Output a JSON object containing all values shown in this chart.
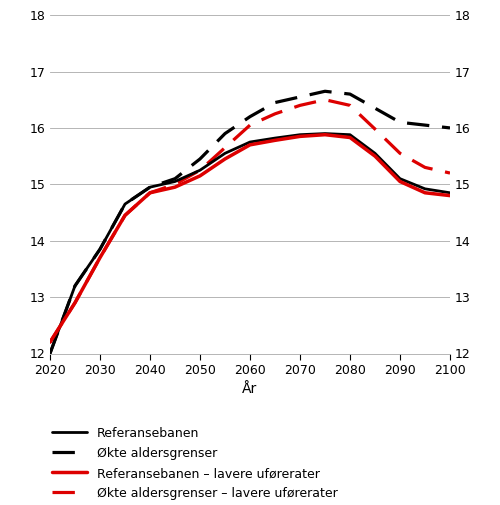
{
  "years": [
    2020,
    2025,
    2030,
    2035,
    2040,
    2045,
    2050,
    2055,
    2060,
    2065,
    2070,
    2075,
    2080,
    2085,
    2090,
    2095,
    2100
  ],
  "referansebanen": [
    12.0,
    13.2,
    13.85,
    14.65,
    14.95,
    15.05,
    15.25,
    15.55,
    15.75,
    15.82,
    15.88,
    15.9,
    15.88,
    15.55,
    15.1,
    14.92,
    14.85
  ],
  "okte_aldersgrenser": [
    12.0,
    13.2,
    13.85,
    14.65,
    14.95,
    15.1,
    15.45,
    15.9,
    16.2,
    16.45,
    16.55,
    16.65,
    16.6,
    16.35,
    16.1,
    16.05,
    16.0
  ],
  "referansebanen_lavere": [
    12.2,
    12.9,
    13.7,
    14.45,
    14.85,
    14.95,
    15.15,
    15.45,
    15.7,
    15.78,
    15.85,
    15.88,
    15.83,
    15.5,
    15.05,
    14.85,
    14.8
  ],
  "okte_aldersgrenser_lavere": [
    12.2,
    12.9,
    13.7,
    14.45,
    14.85,
    15.0,
    15.25,
    15.65,
    16.05,
    16.25,
    16.4,
    16.5,
    16.4,
    15.98,
    15.55,
    15.3,
    15.2
  ],
  "ylim": [
    12,
    18
  ],
  "yticks": [
    12,
    13,
    14,
    15,
    16,
    17,
    18
  ],
  "xticks": [
    2020,
    2030,
    2040,
    2050,
    2060,
    2070,
    2080,
    2090,
    2100
  ],
  "xlabel": "År",
  "color_black": "#000000",
  "color_red": "#dd0000",
  "legend_labels": [
    "Referansebanen",
    "Økte aldersgrenser",
    "Referansebanen – lavere uførerater",
    "Økte aldersgrenser – lavere uførerater"
  ],
  "line_width": 2.0,
  "grid_color": "#aaaaaa",
  "grid_lw": 0.6
}
